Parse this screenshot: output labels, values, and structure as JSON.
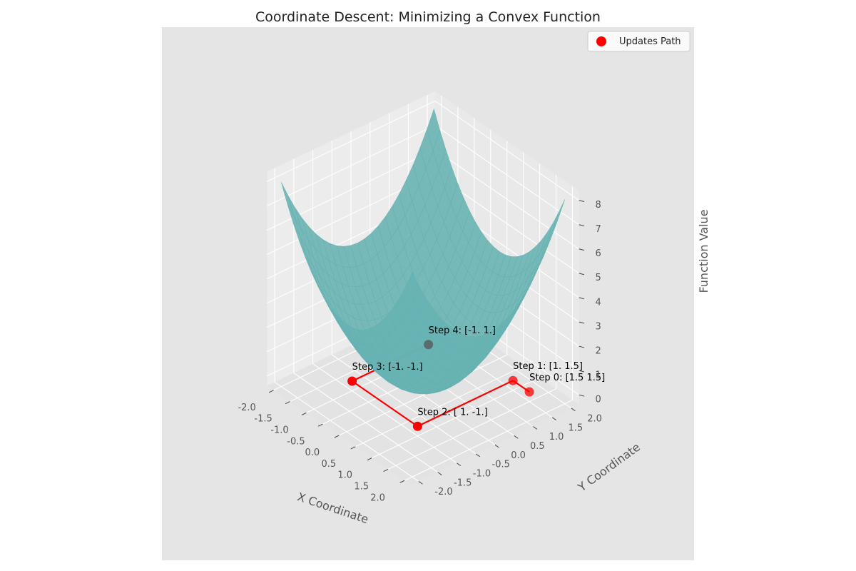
{
  "chart_data": {
    "type": "surface3d",
    "title": "Coordinate Descent: Minimizing a Convex Function",
    "xlabel": "X Coordinate",
    "ylabel": "Y Coordinate",
    "zlabel": "Function Value",
    "xlim": [
      -2,
      2
    ],
    "ylim": [
      -2,
      2
    ],
    "zlim": [
      0,
      8
    ],
    "x_ticks": [
      "-2.0",
      "-1.5",
      "-1.0",
      "-0.5",
      "0.0",
      "0.5",
      "1.0",
      "1.5",
      "2.0"
    ],
    "y_ticks": [
      "-2.0",
      "-1.5",
      "-1.0",
      "-0.5",
      "0.0",
      "0.5",
      "1.0",
      "1.5",
      "2.0"
    ],
    "z_ticks": [
      "0",
      "1",
      "2",
      "3",
      "4",
      "5",
      "6",
      "7",
      "8"
    ],
    "surface": {
      "function": "x^2 + y^2",
      "color": "#66b2b2"
    },
    "path": {
      "name": "Updates Path",
      "color": "#ff0000",
      "points": [
        {
          "x": 1.5,
          "y": 1.5,
          "z": 0,
          "label": "Step 0: [1.5 1.5]"
        },
        {
          "x": 1.0,
          "y": 1.5,
          "z": 0,
          "label": "Step 1: [1.  1.5]"
        },
        {
          "x": 1.0,
          "y": -1.0,
          "z": 0,
          "label": "Step 2: [ 1. -1.]"
        },
        {
          "x": -1.0,
          "y": -1.0,
          "z": 0,
          "label": "Step 3: [-1. -1.]"
        },
        {
          "x": -1.0,
          "y": 1.0,
          "z": 0,
          "label": "Step 4: [-1.  1.]"
        }
      ]
    },
    "legend": {
      "position": "top-right",
      "entries": [
        "Updates Path"
      ]
    },
    "grid": true
  }
}
